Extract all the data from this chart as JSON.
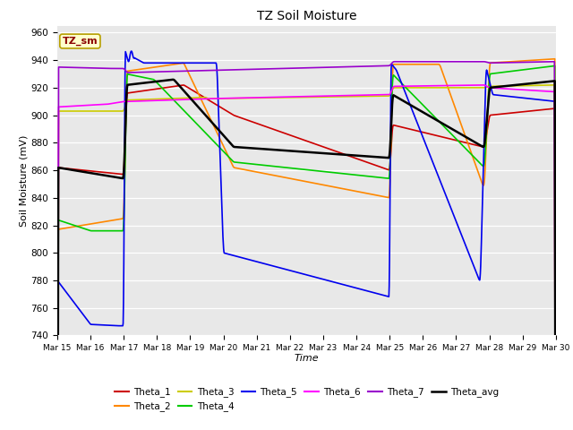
{
  "title": "TZ Soil Moisture",
  "xlabel": "Time",
  "ylabel": "Soil Moisture (mV)",
  "ylim": [
    740,
    965
  ],
  "yticks": [
    740,
    760,
    780,
    800,
    820,
    840,
    860,
    880,
    900,
    920,
    940,
    960
  ],
  "legend_label": "TZ_sm",
  "series_colors": {
    "Theta_1": "#cc0000",
    "Theta_2": "#ff8800",
    "Theta_3": "#cccc00",
    "Theta_4": "#00cc00",
    "Theta_5": "#0000ee",
    "Theta_6": "#ff00ff",
    "Theta_7": "#9900cc",
    "Theta_avg": "#000000"
  },
  "xtick_labels": [
    "Mar 15",
    "Mar 16",
    "Mar 17",
    "Mar 18",
    "Mar 19",
    "Mar 20",
    "Mar 21",
    "Mar 22",
    "Mar 23",
    "Mar 24",
    "Mar 25",
    "Mar 26",
    "Mar 27",
    "Mar 28",
    "Mar 29",
    "Mar 30"
  ],
  "legend_row1": [
    "Theta_1",
    "Theta_2",
    "Theta_3",
    "Theta_4",
    "Theta_5",
    "Theta_6"
  ],
  "legend_row2": [
    "Theta_7",
    "Theta_avg"
  ]
}
